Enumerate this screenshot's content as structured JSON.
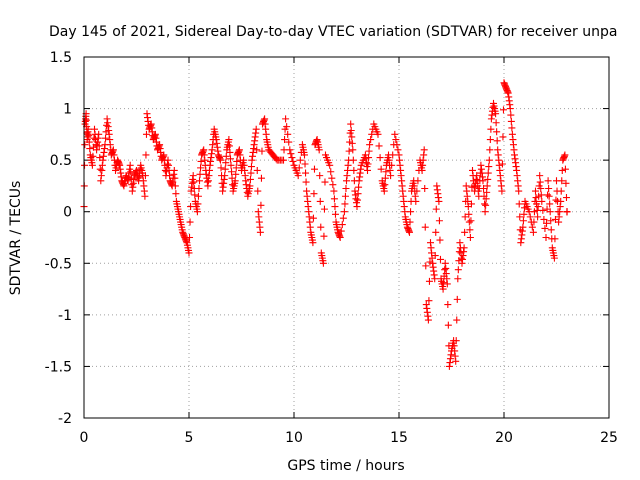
{
  "chart_data": {
    "type": "scatter",
    "title": "Day 145 of 2021, Sidereal Day-to-day VTEC variation (SDTVAR) for receiver unpa",
    "xlabel": "GPS time / hours",
    "ylabel": "SDTVAR / TECUs",
    "xlim": [
      0,
      25
    ],
    "ylim": [
      -2,
      1.5
    ],
    "xticks": [
      0,
      5,
      10,
      15,
      20,
      25
    ],
    "yticks": [
      -2,
      -1.5,
      -1,
      -0.5,
      0,
      0.5,
      1,
      1.5
    ],
    "xtick_labels": [
      "0",
      "5",
      "10",
      "15",
      "20",
      "25"
    ],
    "ytick_labels": [
      "-2",
      "-1.5",
      "-1",
      "-0.5",
      "0",
      "0.5",
      "1",
      "1.5"
    ],
    "grid": true,
    "marker": "plus",
    "color": "#ff0000",
    "series": [
      {
        "name": "SDTVAR",
        "values_note": "x = GPS time in hours, y = SDTVAR in TECU (approximate trace read from dense plotted markers)",
        "points": [
          [
            0.0,
            0.05
          ],
          [
            0.05,
            0.85
          ],
          [
            0.1,
            0.95
          ],
          [
            0.15,
            0.7
          ],
          [
            0.2,
            0.8
          ],
          [
            0.3,
            0.55
          ],
          [
            0.4,
            0.45
          ],
          [
            0.5,
            0.8
          ],
          [
            0.6,
            0.6
          ],
          [
            0.7,
            0.75
          ],
          [
            0.8,
            0.3
          ],
          [
            0.9,
            0.5
          ],
          [
            1.0,
            0.65
          ],
          [
            1.1,
            0.9
          ],
          [
            1.2,
            0.75
          ],
          [
            1.3,
            0.55
          ],
          [
            1.4,
            0.6
          ],
          [
            1.5,
            0.4
          ],
          [
            1.6,
            0.5
          ],
          [
            1.7,
            0.45
          ],
          [
            1.8,
            0.3
          ],
          [
            1.9,
            0.25
          ],
          [
            2.0,
            0.35
          ],
          [
            2.1,
            0.3
          ],
          [
            2.2,
            0.45
          ],
          [
            2.3,
            0.2
          ],
          [
            2.4,
            0.35
          ],
          [
            2.5,
            0.4
          ],
          [
            2.6,
            0.3
          ],
          [
            2.7,
            0.45
          ],
          [
            2.8,
            0.35
          ],
          [
            2.9,
            0.15
          ],
          [
            3.0,
            0.95
          ],
          [
            3.1,
            0.8
          ],
          [
            3.2,
            0.85
          ],
          [
            3.3,
            0.7
          ],
          [
            3.4,
            0.75
          ],
          [
            3.5,
            0.6
          ],
          [
            3.6,
            0.65
          ],
          [
            3.7,
            0.5
          ],
          [
            3.8,
            0.55
          ],
          [
            3.9,
            0.35
          ],
          [
            4.0,
            0.5
          ],
          [
            4.1,
            0.3
          ],
          [
            4.2,
            0.25
          ],
          [
            4.3,
            0.4
          ],
          [
            4.4,
            0.1
          ],
          [
            4.5,
            0.0
          ],
          [
            4.6,
            -0.1
          ],
          [
            4.7,
            -0.2
          ],
          [
            4.8,
            -0.25
          ],
          [
            4.9,
            -0.3
          ],
          [
            5.0,
            -0.4
          ],
          [
            5.1,
            0.2
          ],
          [
            5.2,
            0.35
          ],
          [
            5.3,
            0.1
          ],
          [
            5.4,
            0.0
          ],
          [
            5.5,
            0.3
          ],
          [
            5.6,
            0.55
          ],
          [
            5.7,
            0.6
          ],
          [
            5.8,
            0.4
          ],
          [
            5.9,
            0.25
          ],
          [
            6.0,
            0.45
          ],
          [
            6.1,
            0.6
          ],
          [
            6.2,
            0.8
          ],
          [
            6.3,
            0.7
          ],
          [
            6.4,
            0.55
          ],
          [
            6.5,
            0.5
          ],
          [
            6.6,
            0.2
          ],
          [
            6.7,
            0.35
          ],
          [
            6.8,
            0.6
          ],
          [
            6.9,
            0.7
          ],
          [
            7.0,
            0.45
          ],
          [
            7.1,
            0.2
          ],
          [
            7.2,
            0.3
          ],
          [
            7.3,
            0.55
          ],
          [
            7.4,
            0.6
          ],
          [
            7.5,
            0.4
          ],
          [
            7.6,
            0.5
          ],
          [
            7.7,
            0.3
          ],
          [
            7.8,
            0.15
          ],
          [
            7.9,
            0.25
          ],
          [
            8.0,
            0.5
          ],
          [
            8.1,
            0.65
          ],
          [
            8.2,
            0.8
          ],
          [
            8.3,
            0.0
          ],
          [
            8.4,
            -0.2
          ],
          [
            8.5,
            0.85
          ],
          [
            8.6,
            0.9
          ],
          [
            8.7,
            0.7
          ],
          [
            8.8,
            0.6
          ],
          [
            9.0,
            0.55
          ],
          [
            9.2,
            0.5
          ],
          [
            9.5,
            0.5
          ],
          [
            9.6,
            0.9
          ],
          [
            9.8,
            0.6
          ],
          [
            10.0,
            0.45
          ],
          [
            10.2,
            0.35
          ],
          [
            10.4,
            0.65
          ],
          [
            10.5,
            0.55
          ],
          [
            10.6,
            0.2
          ],
          [
            10.7,
            0.0
          ],
          [
            10.8,
            -0.2
          ],
          [
            10.9,
            -0.3
          ],
          [
            11.0,
            0.65
          ],
          [
            11.1,
            0.7
          ],
          [
            11.2,
            0.6
          ],
          [
            11.3,
            -0.4
          ],
          [
            11.4,
            -0.5
          ],
          [
            11.5,
            0.55
          ],
          [
            11.7,
            0.45
          ],
          [
            11.9,
            0.2
          ],
          [
            12.0,
            -0.1
          ],
          [
            12.1,
            -0.2
          ],
          [
            12.2,
            -0.25
          ],
          [
            12.4,
            0.0
          ],
          [
            12.5,
            0.3
          ],
          [
            12.6,
            0.5
          ],
          [
            12.7,
            0.85
          ],
          [
            12.8,
            0.6
          ],
          [
            12.9,
            0.2
          ],
          [
            13.0,
            0.05
          ],
          [
            13.1,
            0.3
          ],
          [
            13.2,
            0.45
          ],
          [
            13.4,
            0.55
          ],
          [
            13.5,
            0.4
          ],
          [
            13.6,
            0.65
          ],
          [
            13.8,
            0.85
          ],
          [
            14.0,
            0.75
          ],
          [
            14.2,
            0.3
          ],
          [
            14.3,
            0.2
          ],
          [
            14.4,
            0.45
          ],
          [
            14.5,
            0.55
          ],
          [
            14.6,
            0.35
          ],
          [
            14.8,
            0.75
          ],
          [
            15.0,
            0.55
          ],
          [
            15.1,
            0.35
          ],
          [
            15.2,
            0.15
          ],
          [
            15.3,
            -0.05
          ],
          [
            15.4,
            -0.15
          ],
          [
            15.5,
            -0.2
          ],
          [
            15.6,
            0.2
          ],
          [
            15.7,
            0.3
          ],
          [
            15.8,
            0.1
          ],
          [
            16.0,
            0.5
          ],
          [
            16.1,
            0.4
          ],
          [
            16.2,
            0.6
          ],
          [
            16.3,
            -0.9
          ],
          [
            16.4,
            -1.05
          ],
          [
            16.5,
            -0.3
          ],
          [
            16.6,
            -0.5
          ],
          [
            16.7,
            -0.65
          ],
          [
            16.8,
            0.25
          ],
          [
            16.9,
            0.1
          ],
          [
            17.0,
            -0.65
          ],
          [
            17.1,
            -0.75
          ],
          [
            17.2,
            -0.5
          ],
          [
            17.3,
            -0.7
          ],
          [
            17.4,
            -1.5
          ],
          [
            17.5,
            -1.35
          ],
          [
            17.6,
            -1.25
          ],
          [
            17.7,
            -1.45
          ],
          [
            17.8,
            -0.65
          ],
          [
            17.9,
            -0.3
          ],
          [
            18.0,
            -0.5
          ],
          [
            18.1,
            -0.35
          ],
          [
            18.2,
            0.25
          ],
          [
            18.3,
            0.05
          ],
          [
            18.4,
            -0.25
          ],
          [
            18.5,
            0.4
          ],
          [
            18.6,
            0.2
          ],
          [
            18.7,
            0.35
          ],
          [
            18.8,
            0.15
          ],
          [
            18.9,
            0.45
          ],
          [
            19.0,
            0.3
          ],
          [
            19.1,
            0.0
          ],
          [
            19.2,
            0.25
          ],
          [
            19.3,
            0.5
          ],
          [
            19.4,
            0.9
          ],
          [
            19.5,
            1.05
          ],
          [
            19.6,
            0.95
          ],
          [
            19.7,
            0.6
          ],
          [
            19.8,
            0.4
          ],
          [
            19.9,
            0.2
          ],
          [
            20.0,
            1.25
          ],
          [
            20.1,
            1.2
          ],
          [
            20.2,
            1.15
          ],
          [
            20.3,
            1.0
          ],
          [
            20.4,
            0.75
          ],
          [
            20.5,
            0.55
          ],
          [
            20.6,
            0.4
          ],
          [
            20.7,
            0.2
          ],
          [
            20.8,
            -0.3
          ],
          [
            20.9,
            -0.15
          ],
          [
            21.0,
            0.1
          ],
          [
            21.2,
            0.0
          ],
          [
            21.4,
            -0.2
          ],
          [
            21.5,
            0.2
          ],
          [
            21.6,
            -0.05
          ],
          [
            21.7,
            0.35
          ],
          [
            21.8,
            0.1
          ],
          [
            22.0,
            -0.25
          ],
          [
            22.1,
            0.3
          ],
          [
            22.2,
            0.0
          ],
          [
            22.3,
            -0.35
          ],
          [
            22.4,
            -0.45
          ],
          [
            22.5,
            0.3
          ],
          [
            22.6,
            -0.1
          ],
          [
            22.7,
            0.1
          ],
          [
            22.8,
            0.5
          ],
          [
            22.9,
            0.55
          ],
          [
            23.0,
            0.0
          ]
        ]
      }
    ]
  },
  "colors": {
    "marker": "#ff0000",
    "grid": "#a0a0a0",
    "axes": "#000000",
    "background": "#ffffff"
  }
}
